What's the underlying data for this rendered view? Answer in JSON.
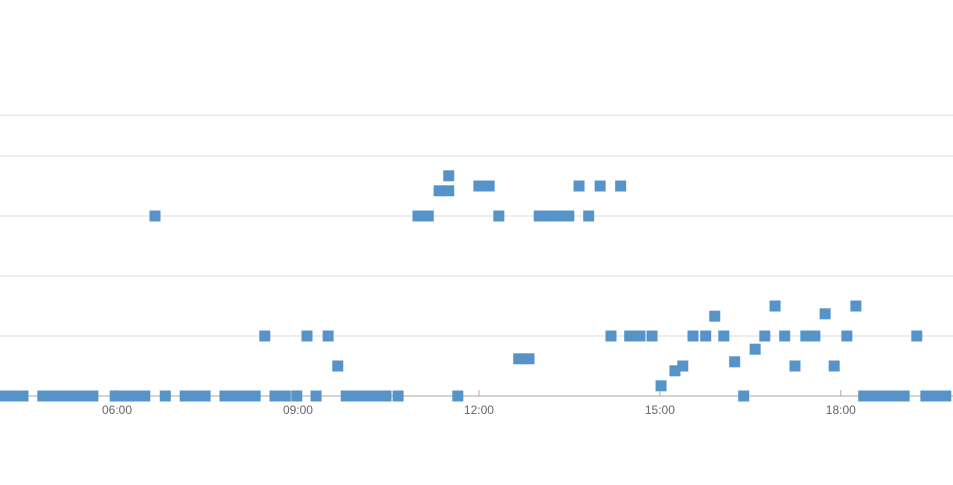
{
  "chart_data": {
    "type": "scatter",
    "x": [
      4.11,
      4.28,
      4.44,
      4.77,
      4.94,
      5.11,
      5.27,
      5.44,
      5.6,
      5.97,
      6.13,
      6.3,
      6.46,
      6.8,
      7.13,
      7.29,
      7.46,
      7.79,
      7.96,
      8.12,
      8.29,
      8.62,
      8.79,
      8.98,
      9.3,
      9.8,
      9.96,
      10.13,
      10.29,
      10.46,
      10.66,
      11.65,
      18.38,
      18.55,
      18.71,
      18.88,
      19.05,
      19.41,
      19.58,
      19.74,
      6.63,
      10.99,
      11.16,
      12.33,
      13.0,
      13.16,
      13.33,
      13.49,
      13.82,
      11.34,
      11.5,
      11.5,
      12.0,
      12.17,
      13.66,
      14.01,
      14.35,
      8.45,
      9.15,
      9.5,
      14.19,
      14.5,
      14.67,
      14.87,
      15.55,
      15.76,
      16.06,
      16.74,
      17.07,
      17.42,
      17.57,
      18.1,
      19.26,
      9.66,
      17.24,
      17.89,
      12.66,
      12.83,
      15.02,
      15.25,
      15.38,
      15.91,
      16.24,
      16.39,
      16.58,
      16.91,
      18.25,
      17.74
    ],
    "y": [
      0,
      0,
      0,
      0,
      0,
      0,
      0,
      0,
      0,
      0,
      0,
      0,
      0,
      0,
      0,
      0,
      0,
      0,
      0,
      0,
      0,
      0,
      0,
      0,
      0,
      0,
      0,
      0,
      0,
      0,
      0,
      0,
      0,
      0,
      0,
      0,
      0,
      0,
      0,
      0,
      3,
      3,
      3,
      3,
      3,
      3,
      3,
      3,
      3,
      3.42,
      3.42,
      3.67,
      3.5,
      3.5,
      3.5,
      3.5,
      3.5,
      1,
      1,
      1,
      1,
      1,
      1,
      1,
      1,
      1,
      1,
      1,
      1,
      1,
      1,
      1,
      1,
      0.5,
      0.5,
      0.5,
      0.62,
      0.62,
      0.17,
      0.42,
      0.5,
      1.33,
      0.57,
      0,
      0.78,
      1.5,
      1.5,
      1.37
    ],
    "color": "#5593c8",
    "xlim": [
      4.06,
      19.86
    ],
    "ylim": [
      0,
      6.6
    ],
    "xticks": [
      {
        "value": 6,
        "label": "06:00"
      },
      {
        "value": 9,
        "label": "09:00"
      },
      {
        "value": 12,
        "label": "12:00"
      },
      {
        "value": 15,
        "label": "15:00"
      },
      {
        "value": 18,
        "label": "18:00"
      }
    ],
    "yticks": [
      0,
      1,
      2,
      3,
      4,
      4.68
    ],
    "grid": true
  }
}
